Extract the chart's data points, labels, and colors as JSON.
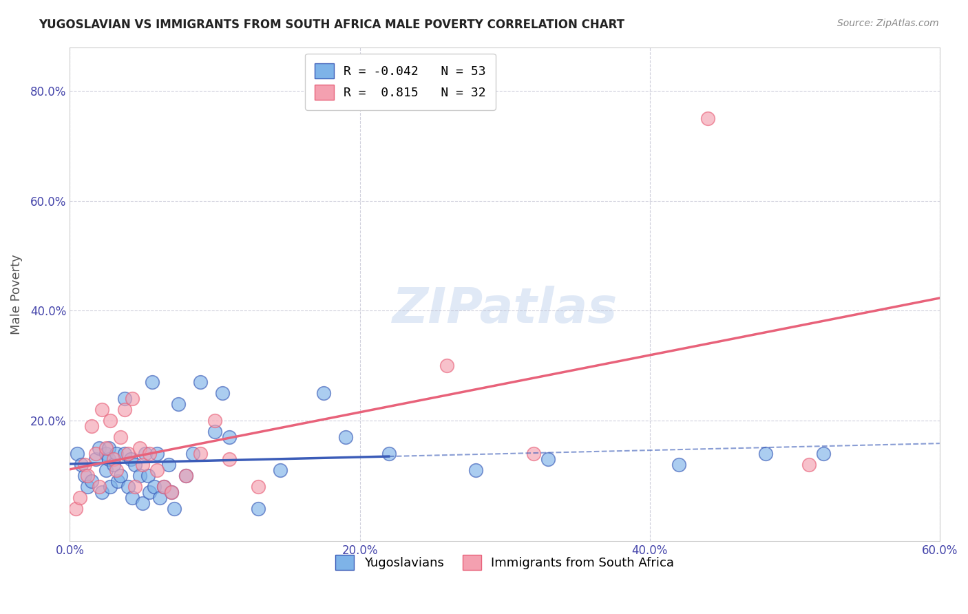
{
  "title": "YUGOSLAVIAN VS IMMIGRANTS FROM SOUTH AFRICA MALE POVERTY CORRELATION CHART",
  "source": "Source: ZipAtlas.com",
  "xlabel": "",
  "ylabel": "Male Poverty",
  "xlim": [
    0.0,
    0.6
  ],
  "ylim": [
    -0.02,
    0.88
  ],
  "xtick_labels": [
    "0.0%",
    "20.0%",
    "40.0%",
    "60.0%"
  ],
  "xtick_values": [
    0.0,
    0.2,
    0.4,
    0.6
  ],
  "ytick_labels": [
    "20.0%",
    "40.0%",
    "60.0%",
    "80.0%"
  ],
  "ytick_values": [
    0.2,
    0.4,
    0.6,
    0.8
  ],
  "color_blue": "#7EB3E8",
  "color_pink": "#F4A0B0",
  "line_blue": "#3B5CB8",
  "line_pink": "#E8627A",
  "legend_r1": "R = -0.042",
  "legend_n1": "N = 53",
  "legend_r2": "R =  0.815",
  "legend_n2": "N = 32",
  "watermark": "ZIPatlas",
  "legend_label1": "Yugoslavians",
  "legend_label2": "Immigrants from South Africa",
  "blue_scatter_x": [
    0.005,
    0.008,
    0.01,
    0.012,
    0.015,
    0.018,
    0.02,
    0.022,
    0.025,
    0.025,
    0.027,
    0.027,
    0.028,
    0.03,
    0.032,
    0.033,
    0.035,
    0.038,
    0.038,
    0.04,
    0.042,
    0.043,
    0.045,
    0.048,
    0.05,
    0.052,
    0.054,
    0.055,
    0.057,
    0.058,
    0.06,
    0.062,
    0.065,
    0.068,
    0.07,
    0.072,
    0.075,
    0.08,
    0.085,
    0.09,
    0.1,
    0.105,
    0.11,
    0.13,
    0.145,
    0.175,
    0.19,
    0.22,
    0.28,
    0.33,
    0.42,
    0.48,
    0.52
  ],
  "blue_scatter_y": [
    0.14,
    0.12,
    0.1,
    0.08,
    0.09,
    0.13,
    0.15,
    0.07,
    0.11,
    0.14,
    0.13,
    0.15,
    0.08,
    0.12,
    0.14,
    0.09,
    0.1,
    0.24,
    0.14,
    0.08,
    0.13,
    0.06,
    0.12,
    0.1,
    0.05,
    0.14,
    0.1,
    0.07,
    0.27,
    0.08,
    0.14,
    0.06,
    0.08,
    0.12,
    0.07,
    0.04,
    0.23,
    0.1,
    0.14,
    0.27,
    0.18,
    0.25,
    0.17,
    0.04,
    0.11,
    0.25,
    0.17,
    0.14,
    0.11,
    0.13,
    0.12,
    0.14,
    0.14
  ],
  "pink_scatter_x": [
    0.004,
    0.007,
    0.01,
    0.012,
    0.015,
    0.018,
    0.02,
    0.022,
    0.025,
    0.028,
    0.03,
    0.032,
    0.035,
    0.038,
    0.04,
    0.043,
    0.045,
    0.048,
    0.05,
    0.055,
    0.06,
    0.065,
    0.07,
    0.08,
    0.09,
    0.1,
    0.11,
    0.13,
    0.26,
    0.32,
    0.44,
    0.51
  ],
  "pink_scatter_y": [
    0.04,
    0.06,
    0.12,
    0.1,
    0.19,
    0.14,
    0.08,
    0.22,
    0.15,
    0.2,
    0.13,
    0.11,
    0.17,
    0.22,
    0.14,
    0.24,
    0.08,
    0.15,
    0.12,
    0.14,
    0.11,
    0.08,
    0.07,
    0.1,
    0.14,
    0.2,
    0.13,
    0.08,
    0.3,
    0.14,
    0.75,
    0.12
  ]
}
